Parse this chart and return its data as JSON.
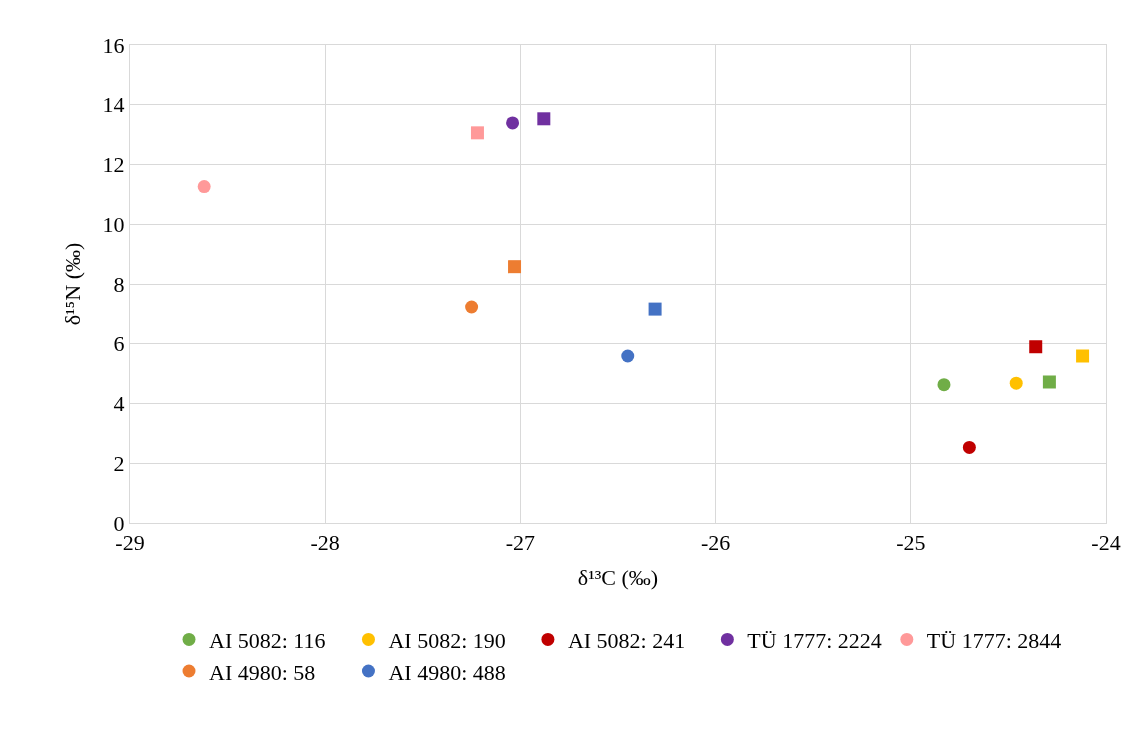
{
  "chart_data": {
    "type": "scatter",
    "xlabel": "δ¹³C (‰)",
    "ylabel": "δ¹⁵N (‰)",
    "xlim": [
      -29,
      -24
    ],
    "xticks": [
      -29,
      -28,
      -27,
      -26,
      -25,
      -24
    ],
    "ylim": [
      0,
      16
    ],
    "yticks": [
      0,
      2,
      4,
      6,
      8,
      10,
      12,
      14,
      16
    ],
    "grid": true,
    "legend": "bottom",
    "series": [
      {
        "name": "AI 5082: 116",
        "color": "#70ad47",
        "marker": [
          "circle",
          "square"
        ],
        "x": [
          -24.83,
          -24.29
        ],
        "values": [
          4.63,
          4.72
        ]
      },
      {
        "name": "AI 5082: 190",
        "color": "#ffc000",
        "marker": [
          "circle",
          "square"
        ],
        "x": [
          -24.46,
          -24.12
        ],
        "values": [
          4.68,
          5.59
        ]
      },
      {
        "name": "AI 5082: 241",
        "color": "#c00000",
        "marker": [
          "circle",
          "square"
        ],
        "x": [
          -24.7,
          -24.36
        ],
        "values": [
          2.53,
          5.9
        ]
      },
      {
        "name": "TÜ 1777: 2224",
        "color": "#7030a0",
        "marker": [
          "circle",
          "square"
        ],
        "x": [
          -27.04,
          -26.88
        ],
        "values": [
          13.39,
          13.53
        ]
      },
      {
        "name": "TÜ 1777: 2844",
        "color": "#ff9999",
        "marker": [
          "circle",
          "square"
        ],
        "x": [
          -28.62,
          -27.22
        ],
        "values": [
          11.26,
          13.06
        ]
      },
      {
        "name": "AI 4980: 58",
        "color": "#ed7d31",
        "marker": [
          "circle",
          "square"
        ],
        "x": [
          -27.25,
          -27.03
        ],
        "values": [
          7.23,
          8.58
        ]
      },
      {
        "name": "AI 4980: 488",
        "color": "#4472c4",
        "marker": [
          "circle",
          "square"
        ],
        "x": [
          -26.45,
          -26.31
        ],
        "values": [
          5.59,
          7.16
        ]
      }
    ]
  }
}
